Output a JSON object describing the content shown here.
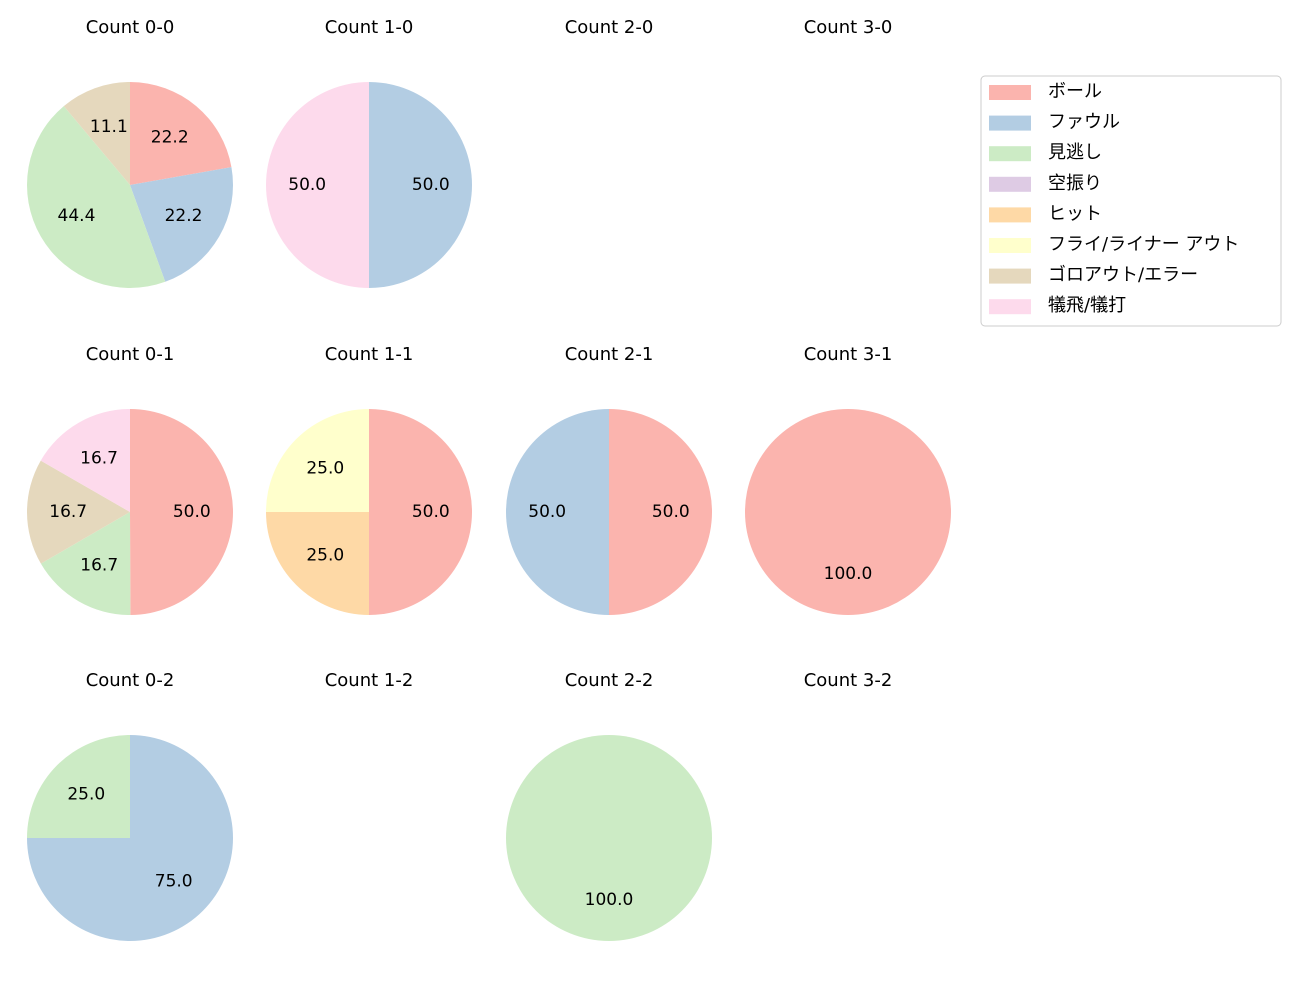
{
  "chart_data": [
    {
      "type": "pie",
      "title": "Count 0-0",
      "categories": [
        "ボール",
        "ファウル",
        "見逃し",
        "ゴロアウト/エラー"
      ],
      "values": [
        22.2,
        22.2,
        44.4,
        11.1
      ],
      "colors": [
        "#fbb4ae",
        "#b3cde3",
        "#ccebc5",
        "#e5d8bd"
      ]
    },
    {
      "type": "pie",
      "title": "Count 1-0",
      "categories": [
        "ファウル",
        "犠飛/犠打"
      ],
      "values": [
        50,
        50
      ],
      "value_labels": [
        "50.0",
        "50.0"
      ],
      "colors": [
        "#b3cde3",
        "#fddaec"
      ]
    },
    {
      "type": "pie",
      "title": "Count 2-0"
    },
    {
      "type": "pie",
      "title": "Count 3-0"
    },
    {
      "type": "pie",
      "title": "Count 0-1",
      "categories": [
        "ボール",
        "見逃し",
        "ゴロアウト/エラー",
        "犠飛/犠打"
      ],
      "values": [
        50,
        16.7,
        16.7,
        16.7
      ],
      "value_labels": [
        "50.0",
        "16.7",
        "16.7",
        "16.7"
      ],
      "colors": [
        "#fbb4ae",
        "#ccebc5",
        "#e5d8bd",
        "#fddaec"
      ]
    },
    {
      "type": "pie",
      "title": "Count 1-1",
      "categories": [
        "ボール",
        "ヒット",
        "フライ/ライナー アウト"
      ],
      "values": [
        50,
        25,
        25
      ],
      "value_labels": [
        "50.0",
        "25.0",
        "25.0"
      ],
      "colors": [
        "#fbb4ae",
        "#fed9a6",
        "#ffffcc"
      ]
    },
    {
      "type": "pie",
      "title": "Count 2-1",
      "categories": [
        "ボール",
        "ファウル"
      ],
      "values": [
        50,
        50
      ],
      "value_labels": [
        "50.0",
        "50.0"
      ],
      "colors": [
        "#fbb4ae",
        "#b3cde3"
      ]
    },
    {
      "type": "pie",
      "title": "Count 3-1",
      "categories": [
        "ボール"
      ],
      "values": [
        100
      ],
      "value_labels": [
        "100.0"
      ],
      "colors": [
        "#fbb4ae"
      ]
    },
    {
      "type": "pie",
      "title": "Count 0-2",
      "categories": [
        "ファウル",
        "見逃し"
      ],
      "values": [
        75,
        25
      ],
      "value_labels": [
        "75.0",
        "25.0"
      ],
      "colors": [
        "#b3cde3",
        "#ccebc5"
      ]
    },
    {
      "type": "pie",
      "title": "Count 1-2"
    },
    {
      "type": "pie",
      "title": "Count 2-2",
      "categories": [
        "見逃し"
      ],
      "values": [
        100
      ],
      "value_labels": [
        "100.0"
      ],
      "colors": [
        "#ccebc5"
      ]
    },
    {
      "type": "pie",
      "title": "Count 3-2"
    }
  ],
  "legend": {
    "entries": [
      {
        "name": "ボール",
        "color": "#fbb4ae"
      },
      {
        "name": "ファウル",
        "color": "#b3cde3"
      },
      {
        "name": "見逃し",
        "color": "#ccebc5"
      },
      {
        "name": "空振り",
        "color": "#decbe4"
      },
      {
        "name": "ヒット",
        "color": "#fed9a6"
      },
      {
        "name": "フライ/ライナー アウト",
        "color": "#ffffcc"
      },
      {
        "name": "ゴロアウト/エラー",
        "color": "#e5d8bd"
      },
      {
        "name": "犠飛/犠打",
        "color": "#fddaec"
      }
    ]
  }
}
